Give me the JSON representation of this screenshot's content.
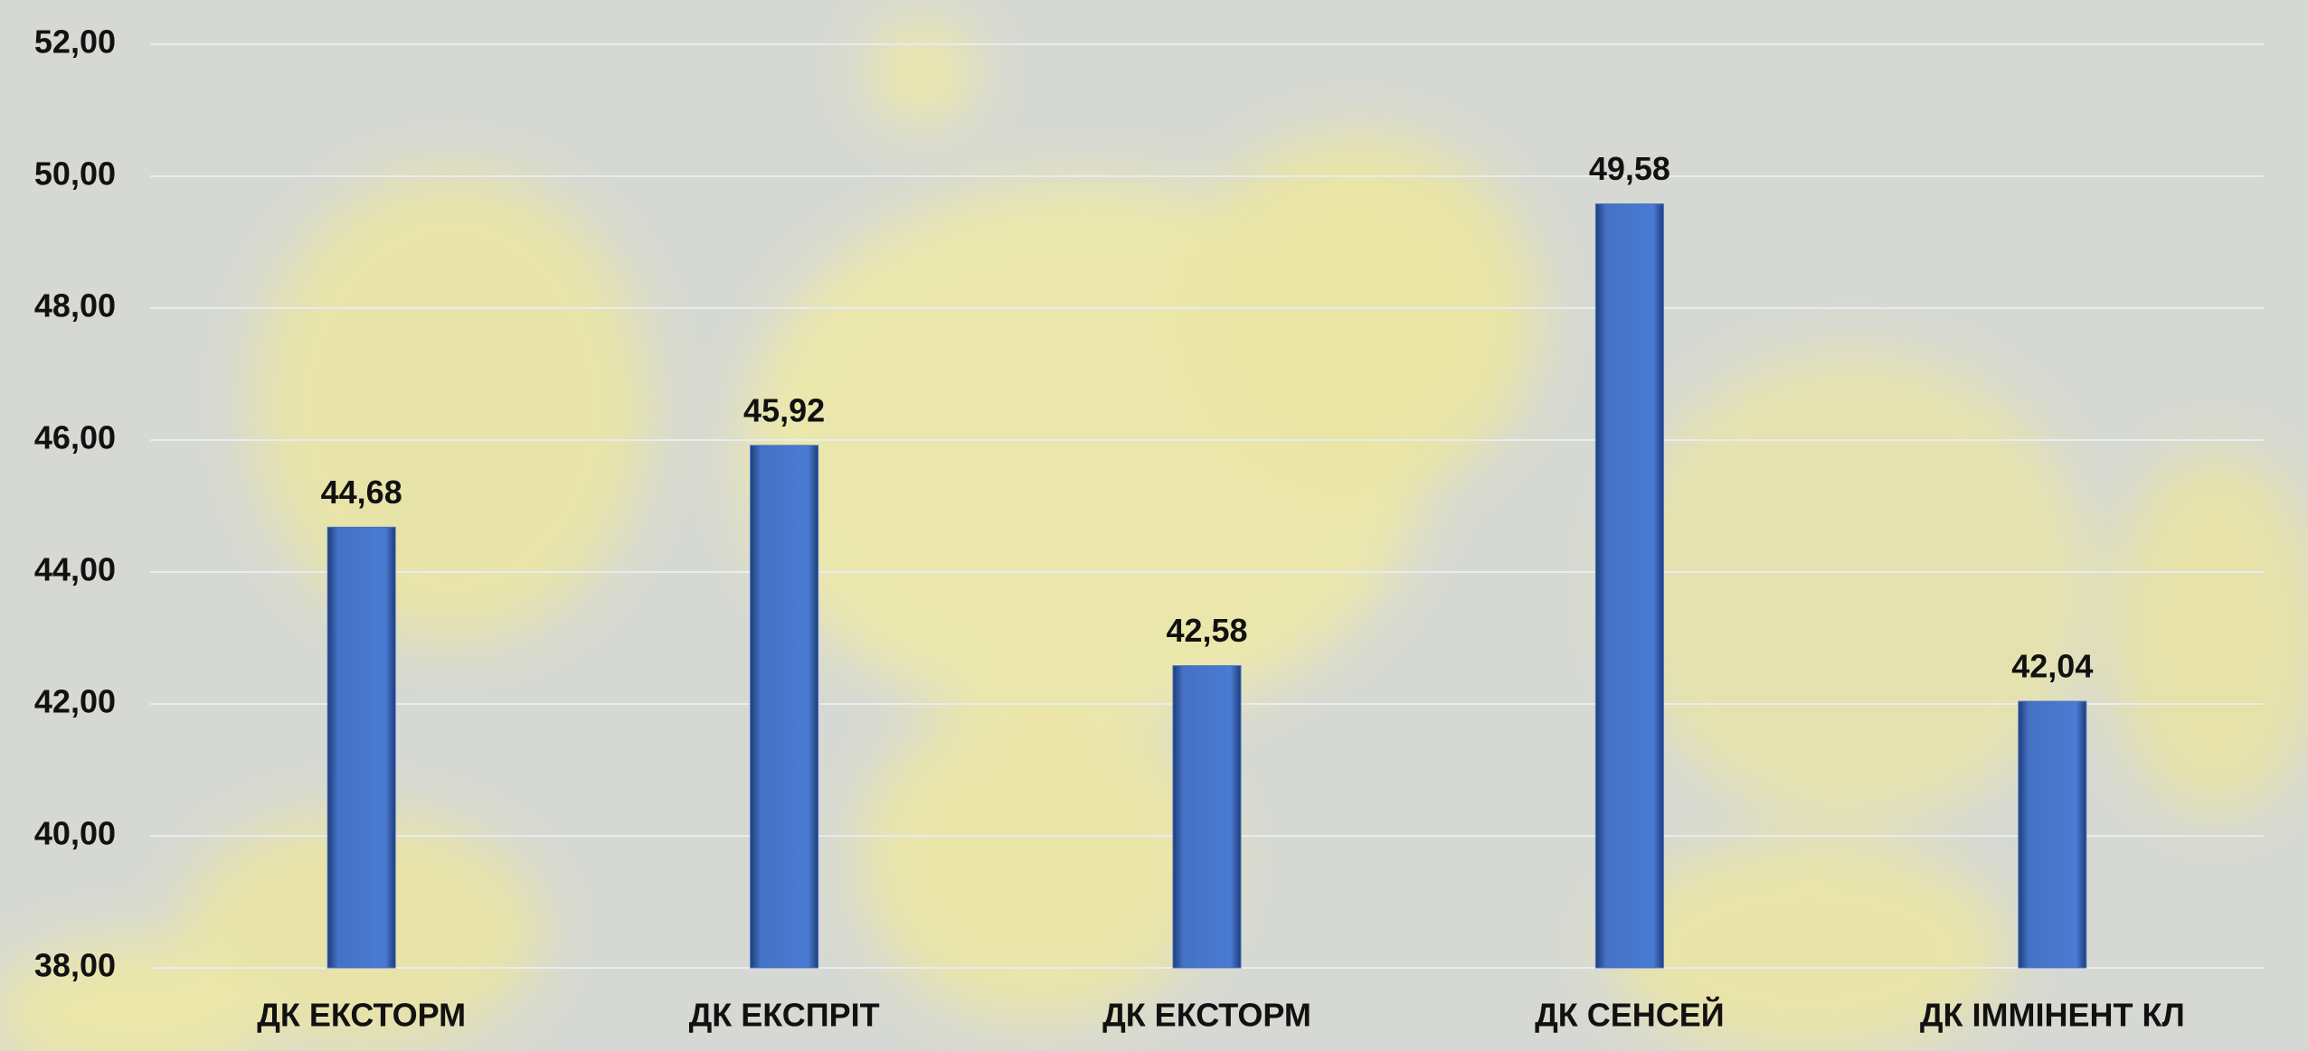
{
  "chart_data": {
    "type": "bar",
    "categories": [
      "ДК ЕКСТОРМ",
      "ДК ЕКСПРІТ",
      "ДК ЕКСТОРМ",
      "ДК СЕНСЕЙ",
      "ДК ІММІНЕНТ КЛ"
    ],
    "values": [
      44.68,
      45.92,
      42.58,
      49.58,
      42.04
    ],
    "value_labels": [
      "44,68",
      "45,92",
      "42,58",
      "49,58",
      "42,04"
    ],
    "color": "#4472c4",
    "ylim": [
      38,
      52
    ],
    "yticks": [
      {
        "value": 38,
        "label": "38,00"
      },
      {
        "value": 40,
        "label": "40,00"
      },
      {
        "value": 42,
        "label": "42,00"
      },
      {
        "value": 44,
        "label": "44,00"
      },
      {
        "value": 46,
        "label": "46,00"
      },
      {
        "value": 48,
        "label": "48,00"
      },
      {
        "value": 50,
        "label": "50,00"
      },
      {
        "value": 52,
        "label": "52,00"
      }
    ],
    "grid": true
  }
}
